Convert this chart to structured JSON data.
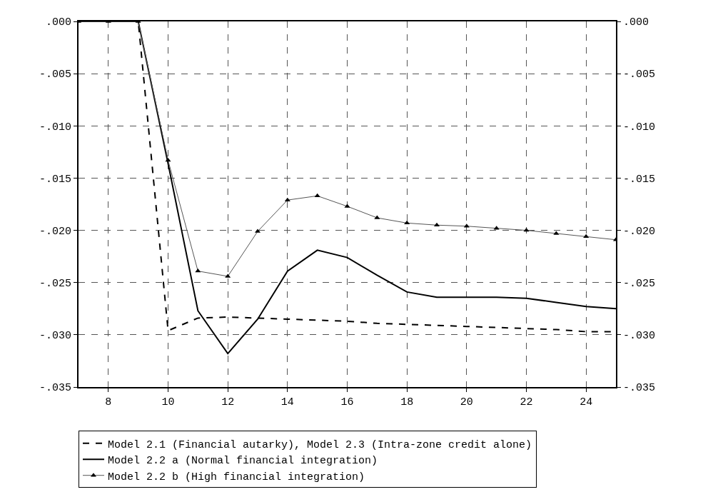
{
  "chart_data": {
    "type": "line",
    "x": [
      7,
      8,
      9,
      10,
      11,
      12,
      13,
      14,
      15,
      16,
      17,
      18,
      19,
      20,
      21,
      22,
      23,
      24,
      25
    ],
    "series": [
      {
        "name": "Model 2.1 (Financial autarky), Model 2.3 (Intra-zone credit alone)",
        "color": "#000000",
        "line_style": "dashed",
        "marker": "none",
        "values": [
          0,
          0,
          0,
          -0.0296,
          -0.0284,
          -0.0283,
          -0.0284,
          -0.0285,
          -0.0286,
          -0.0287,
          -0.0289,
          -0.029,
          -0.0291,
          -0.0292,
          -0.0293,
          -0.0294,
          -0.0295,
          -0.0297,
          -0.0297
        ]
      },
      {
        "name": "Model 2.2 a (Normal financial integration)",
        "color": "#000000",
        "line_style": "solid",
        "marker": "none",
        "values": [
          0,
          0,
          0,
          -0.0136,
          -0.0277,
          -0.0318,
          -0.0285,
          -0.0239,
          -0.0219,
          -0.0226,
          -0.0243,
          -0.0259,
          -0.0264,
          -0.0264,
          -0.0264,
          -0.0265,
          -0.0269,
          -0.0273,
          -0.0275
        ]
      },
      {
        "name": "Model 2.2 b (High financial integration)",
        "color": "#555555",
        "line_style": "solid",
        "marker": "triangle",
        "values": [
          0,
          0,
          0,
          -0.0133,
          -0.0239,
          -0.0244,
          -0.0201,
          -0.0171,
          -0.0167,
          -0.0177,
          -0.0188,
          -0.0193,
          -0.0195,
          -0.0196,
          -0.0198,
          -0.02,
          -0.0203,
          -0.0206,
          -0.0209
        ]
      }
    ],
    "xlim": [
      7,
      25
    ],
    "xticks": [
      8,
      10,
      12,
      14,
      16,
      18,
      20,
      22,
      24
    ],
    "ylim": [
      -0.035,
      0
    ],
    "yticks": [
      {
        "value": 0,
        "label": ".000"
      },
      {
        "value": -0.005,
        "label": "-.005"
      },
      {
        "value": -0.01,
        "label": "-.010"
      },
      {
        "value": -0.015,
        "label": "-.015"
      },
      {
        "value": -0.02,
        "label": "-.020"
      },
      {
        "value": -0.025,
        "label": "-.025"
      },
      {
        "value": -0.03,
        "label": "-.030"
      },
      {
        "value": -0.035,
        "label": "-.035"
      }
    ],
    "y2lim": [
      -0.035,
      0
    ],
    "y2ticks": [
      {
        "value": 0,
        "label": ".000"
      },
      {
        "value": -0.005,
        "label": "-.005"
      },
      {
        "value": -0.01,
        "label": "-.010"
      },
      {
        "value": -0.015,
        "label": "-.015"
      },
      {
        "value": -0.02,
        "label": "-.020"
      },
      {
        "value": -0.025,
        "label": "-.025"
      },
      {
        "value": -0.03,
        "label": "-.030"
      },
      {
        "value": -0.035,
        "label": "-.035"
      }
    ],
    "grid": true,
    "legend": "bottom"
  }
}
